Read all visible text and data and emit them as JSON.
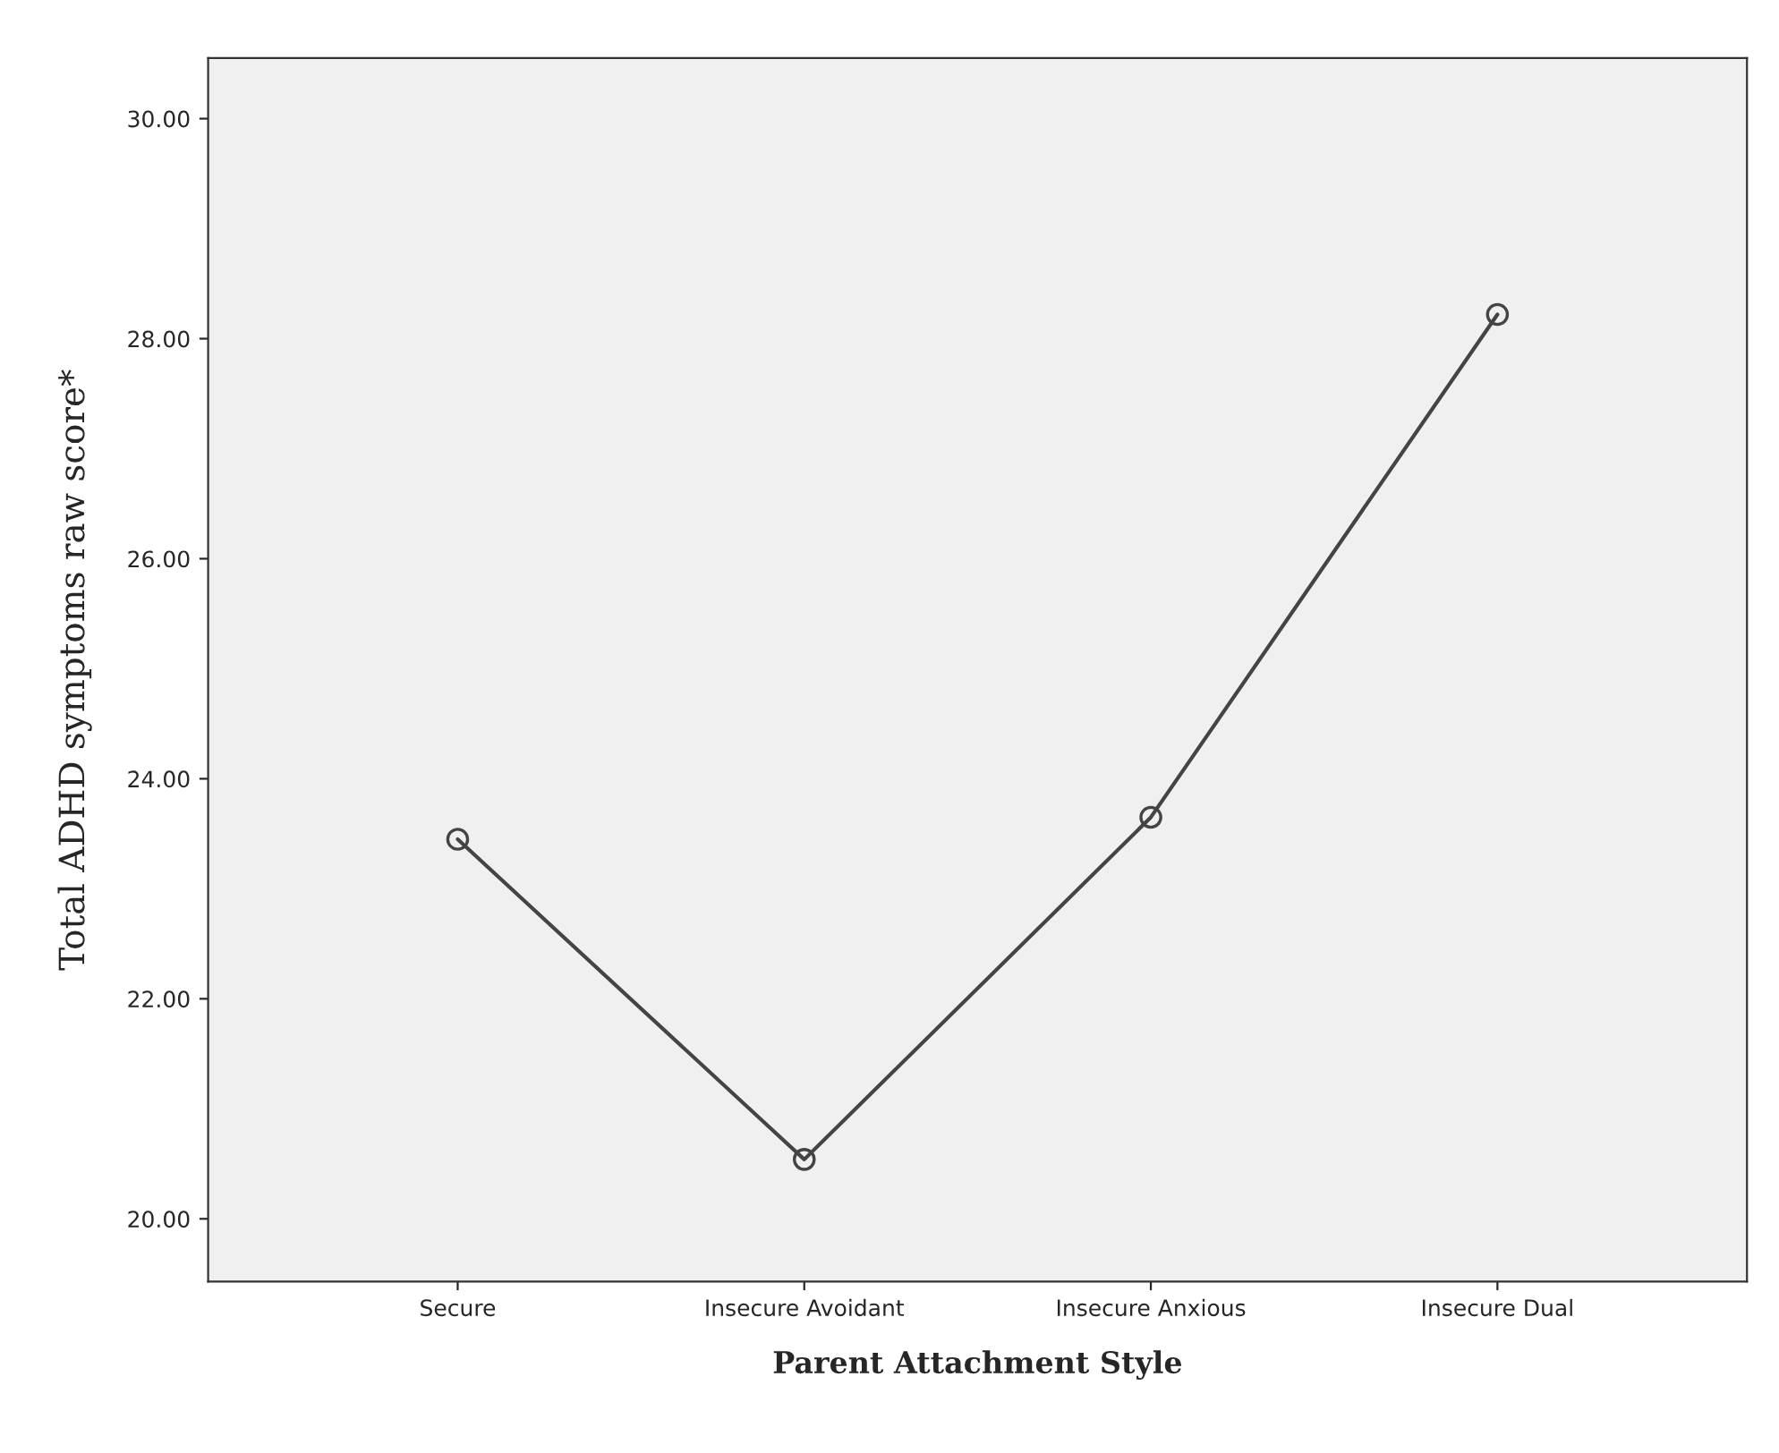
{
  "chart_data": {
    "type": "line",
    "xlabel": "Parent Attachment Style",
    "ylabel": "Total ADHD symptoms raw score*",
    "categories": [
      "Secure",
      "Insecure Avoidant",
      "Insecure Anxious",
      "Insecure Dual"
    ],
    "series": [
      {
        "color": "#444444",
        "values": [
          23.45,
          20.54,
          23.65,
          28.22
        ]
      }
    ],
    "marker": "circle",
    "line_style": "solid",
    "ylim": [
      19.43,
      30.55
    ],
    "yticks": [
      {
        "value": 20,
        "label": "20.00"
      },
      {
        "value": 22,
        "label": "22.00"
      },
      {
        "value": 24,
        "label": "24.00"
      },
      {
        "value": 26,
        "label": "26.00"
      },
      {
        "value": 28,
        "label": "28.00"
      },
      {
        "value": 30,
        "label": "30.00"
      }
    ],
    "grid": false
  }
}
